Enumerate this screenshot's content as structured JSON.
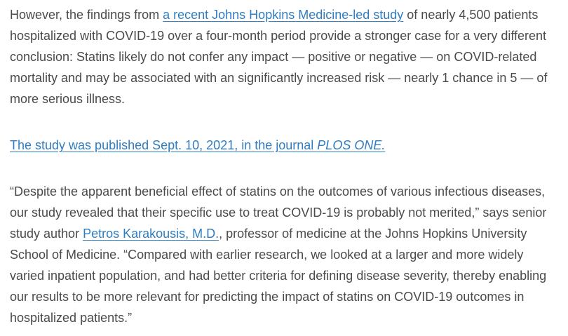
{
  "page": {
    "background_color": "#ffffff",
    "text_color": "#4a4a4a",
    "link_color": "#2f7dc0"
  },
  "article": {
    "paragraphs": [
      {
        "name": "paragraph-study-findings",
        "runs": [
          {
            "type": "text",
            "text": "However, the findings from "
          },
          {
            "type": "link",
            "text": "a recent Johns Hopkins Medicine-led study"
          },
          {
            "type": "text",
            "text": " of nearly 4,500 patients hospitalized with COVID-19 over a four-month period provide a stronger case for a very different conclusion: Statins likely do not confer any impact — positive or negative — on COVID-related mortality and may be associated with an significantly increased risk — nearly 1 chance in 5 — of more serious illness."
          }
        ]
      },
      {
        "name": "paragraph-publication",
        "runs": [
          {
            "type": "link",
            "text": "The study was published Sept. 10, 2021, in the journal "
          },
          {
            "type": "link",
            "italic": true,
            "text": "PLOS ONE."
          }
        ]
      },
      {
        "name": "paragraph-author-quote",
        "runs": [
          {
            "type": "text",
            "text": "“Despite the apparent beneficial effect of statins on the outcomes of various infectious diseases, our study revealed that their specific use to treat COVID-19 is probably not merited,” says senior study author "
          },
          {
            "type": "link",
            "text": "Petros Karakousis, M.D."
          },
          {
            "type": "text",
            "text": ", professor of medicine at the Johns Hopkins University School of Medicine. “Compared with earlier research, we looked at a larger and more widely varied inpatient population, and had better criteria for defining disease severity, thereby enabling our results to be more relevant for predicting the impact of statins on COVID-19 outcomes in hospitalized patients.”"
          }
        ]
      }
    ]
  }
}
